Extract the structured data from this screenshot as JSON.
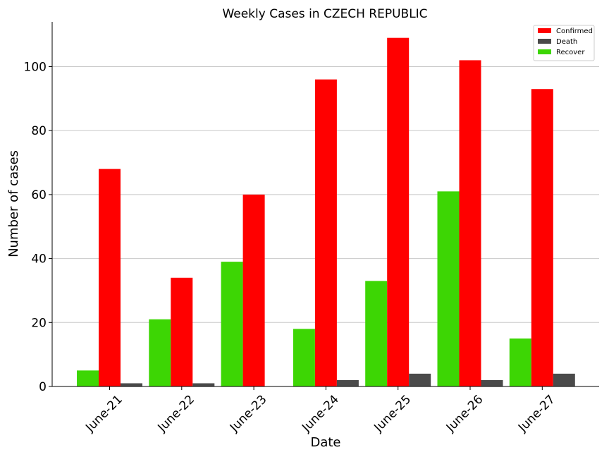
{
  "chart_data": {
    "type": "bar",
    "title": "Weekly Cases in CZECH REPUBLIC",
    "xlabel": "Date",
    "ylabel": "Number of cases",
    "categories": [
      "June-21",
      "June-22",
      "June-23",
      "June-24",
      "June-25",
      "June-26",
      "June-27"
    ],
    "series": [
      {
        "name": "Recover",
        "color": "#3dd604",
        "values": [
          5,
          21,
          39,
          18,
          33,
          61,
          15
        ]
      },
      {
        "name": "Confirmed",
        "color": "#ff0000",
        "values": [
          68,
          34,
          60,
          96,
          109,
          102,
          93
        ]
      },
      {
        "name": "Death",
        "color": "#4a4a4a",
        "values": [
          1,
          1,
          0,
          2,
          4,
          2,
          4
        ]
      }
    ],
    "legend_order": [
      "Confirmed",
      "Death",
      "Recover"
    ],
    "legend_position": "top-right",
    "ylim": [
      0,
      114
    ],
    "yticks": [
      0,
      20,
      40,
      60,
      80,
      100
    ],
    "grid": "horizontal"
  }
}
